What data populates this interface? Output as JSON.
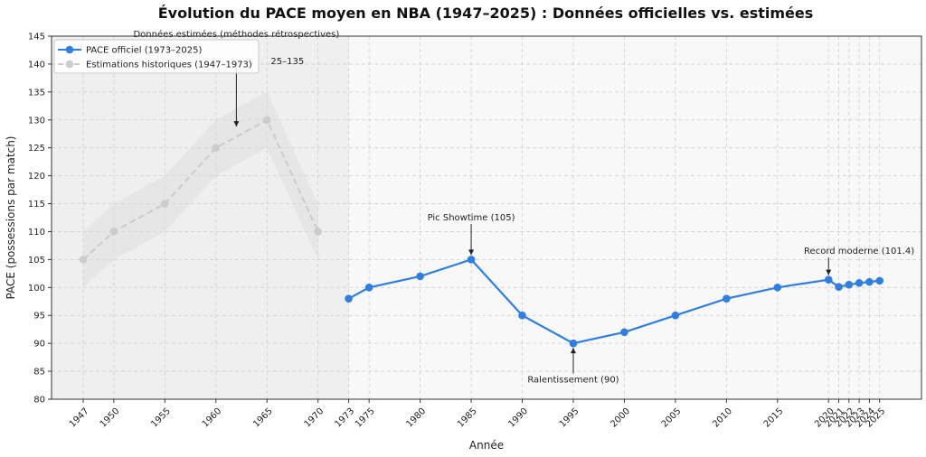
{
  "chart_data": {
    "type": "line",
    "title": "Évolution du PACE moyen en NBA (1947–2025) : Données officielles vs. estimées",
    "xlabel": "Année",
    "ylabel": "PACE (possessions par match)",
    "xlim": [
      1943.9,
      2029.1
    ],
    "ylim": [
      80,
      145
    ],
    "grid": true,
    "legend_position": "top-left",
    "x_ticks": [
      1947,
      1950,
      1955,
      1960,
      1965,
      1970,
      1973,
      1975,
      1980,
      1985,
      1990,
      1995,
      2000,
      2005,
      2010,
      2015,
      2020,
      2021,
      2022,
      2023,
      2024,
      2025
    ],
    "y_ticks": [
      80,
      85,
      90,
      95,
      100,
      105,
      110,
      115,
      120,
      125,
      130,
      135,
      140,
      145
    ],
    "shaded_region": {
      "x_start": 1943.9,
      "x_end": 1973,
      "label": "Données estimées (méthodes rétrospectives)"
    },
    "series": [
      {
        "name": "PACE officiel (1973–2025)",
        "color": "#2f7ee0",
        "style": "solid",
        "x": [
          1973,
          1975,
          1980,
          1985,
          1990,
          1995,
          2000,
          2005,
          2010,
          2015,
          2020,
          2021,
          2022,
          2023,
          2024,
          2025
        ],
        "y": [
          98,
          100,
          102,
          105,
          95,
          90,
          92,
          95,
          98,
          100,
          101.4,
          100.1,
          100.5,
          100.8,
          101.0,
          101.2
        ]
      },
      {
        "name": "Estimations historiques (1947–1973)",
        "color": "#cccccc",
        "style": "dashed",
        "x": [
          1947,
          1950,
          1955,
          1960,
          1965,
          1970
        ],
        "y": [
          105,
          110,
          115,
          125,
          130,
          110
        ],
        "band_low": [
          100,
          105,
          110,
          120,
          125,
          105
        ],
        "band_high": [
          110,
          115,
          120,
          130,
          135,
          115
        ]
      }
    ],
    "annotations": [
      {
        "text": "Pic Showtime (105)",
        "x": 1985,
        "y": 105,
        "text_x": 1985,
        "text_y": 112
      },
      {
        "text": "Ralentissement (90)",
        "x": 1995,
        "y": 90,
        "text_x": 1995,
        "text_y": 83
      },
      {
        "text": "Record moderne (101.4)",
        "x": 2020,
        "y": 101.4,
        "text_x": 2023,
        "text_y": 106
      },
      {
        "text": "25–135",
        "x": 1962,
        "y": 128,
        "text_x": 1967,
        "text_y": 140
      }
    ]
  }
}
